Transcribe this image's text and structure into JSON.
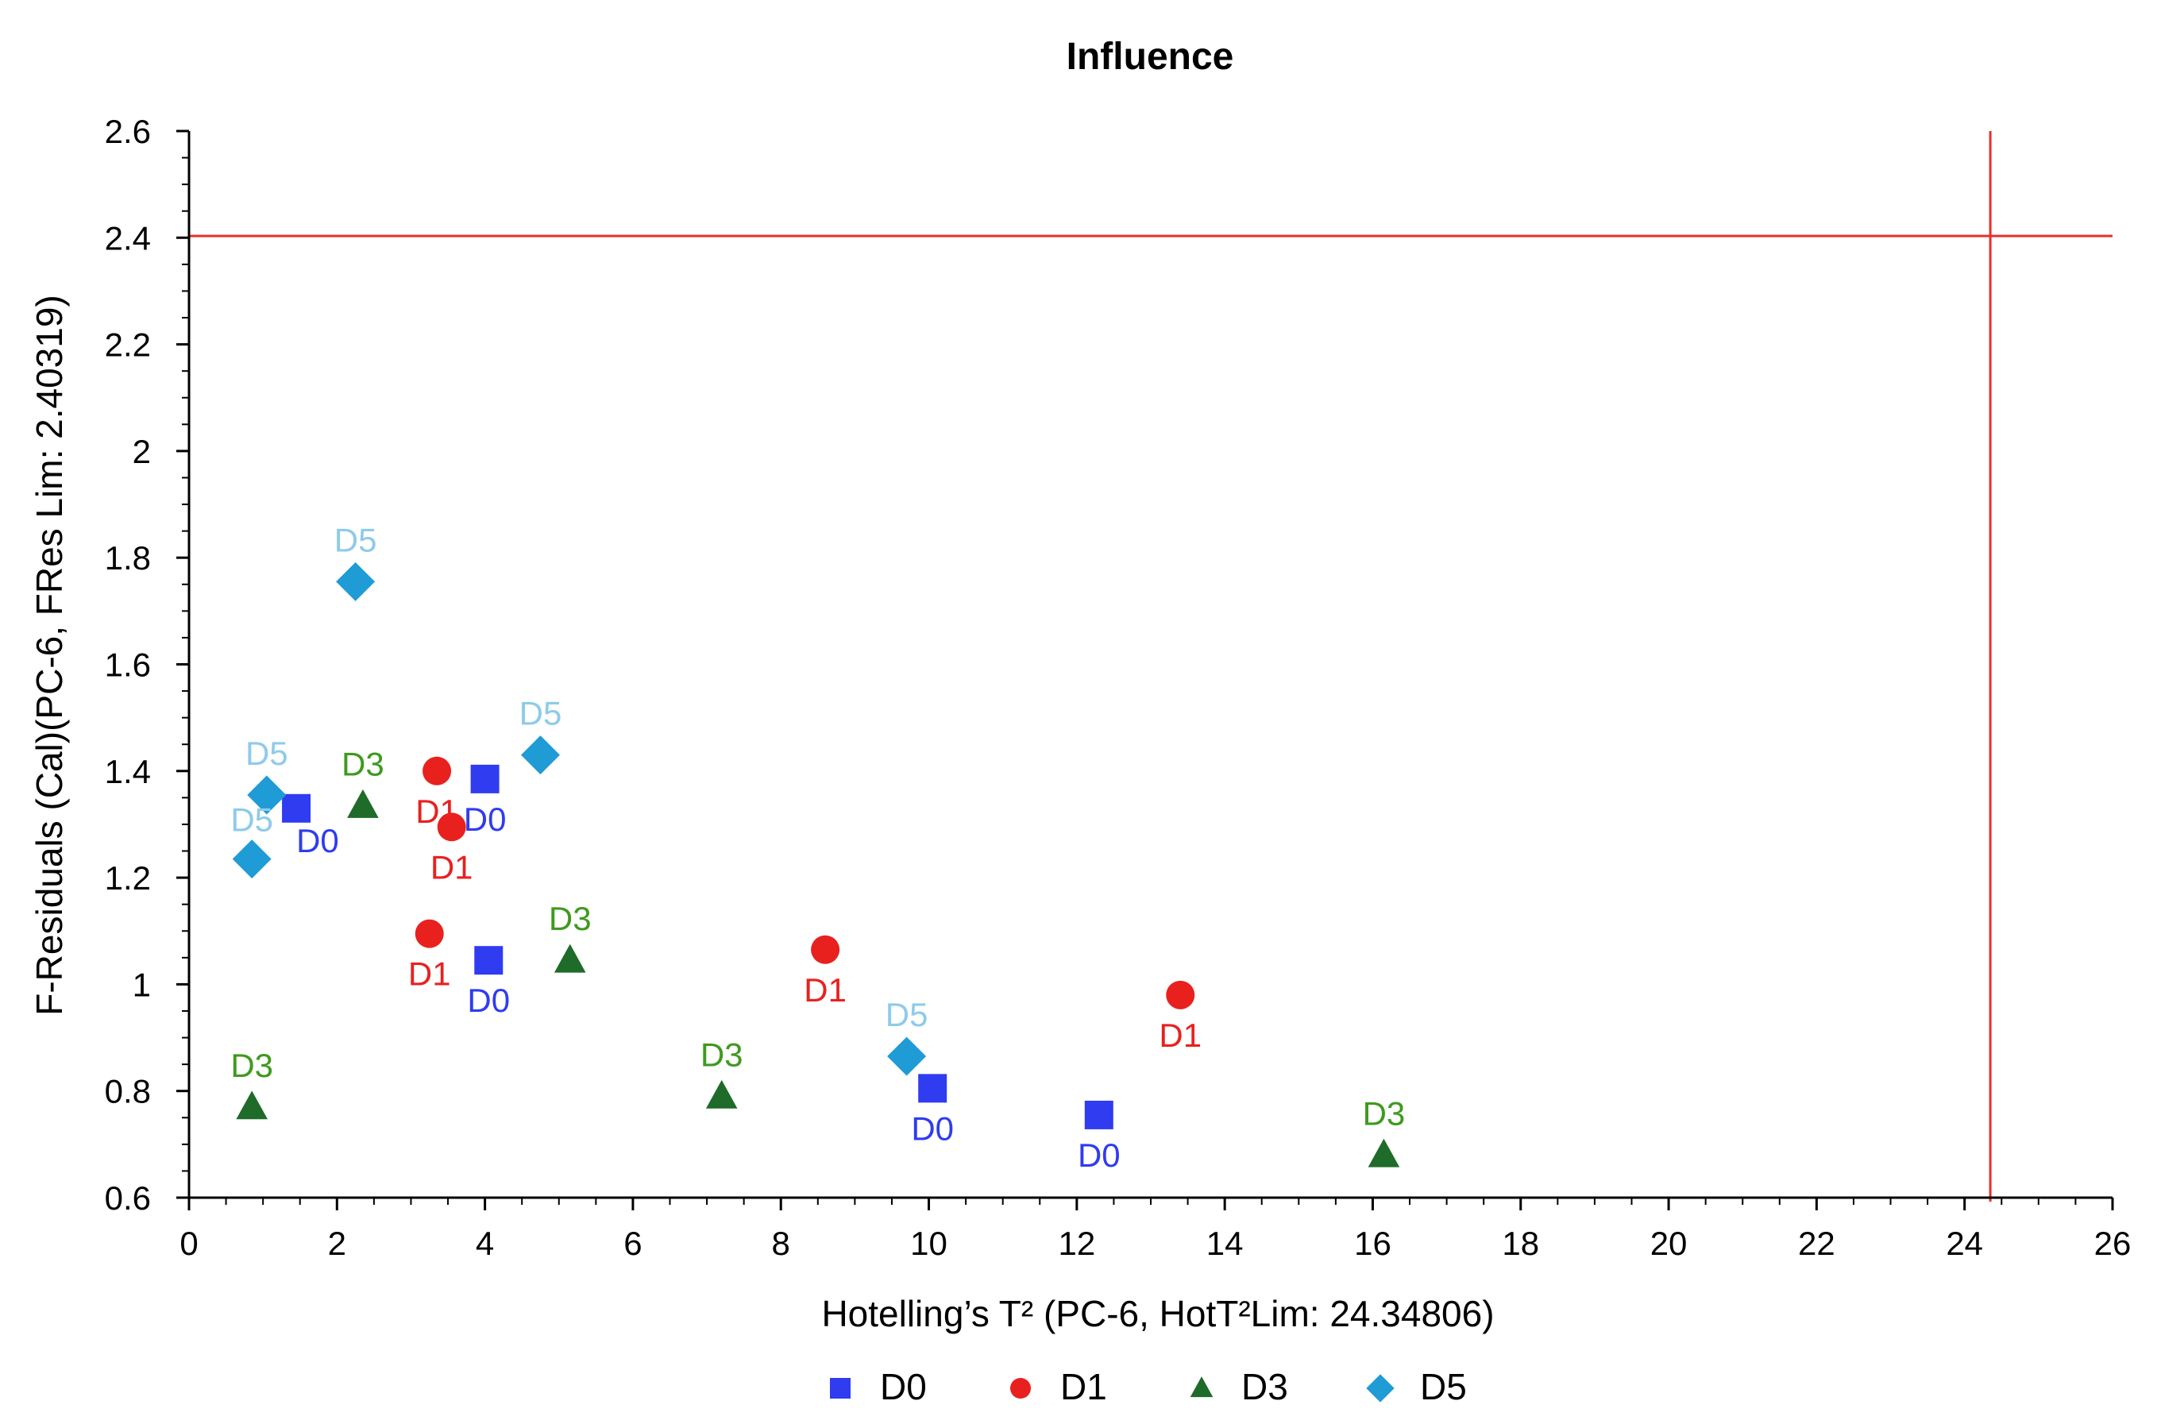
{
  "chart_data": {
    "type": "scatter",
    "title": "Influence",
    "xlabel": "Hotelling’s T² (PC-6, HotT²Lim: 24.34806)",
    "ylabel": "F-Residuals (Cal)(PC-6, FRes Lim: 2.40319)",
    "xlim": [
      0,
      26
    ],
    "ylim": [
      0.6,
      2.6
    ],
    "xticks": [
      0,
      2,
      4,
      6,
      8,
      10,
      12,
      14,
      16,
      18,
      20,
      22,
      24,
      26
    ],
    "yticks": [
      0.6,
      0.8,
      1,
      1.2,
      1.4,
      1.6,
      1.8,
      2,
      2.2,
      2.4,
      2.6
    ],
    "limits": {
      "x": 24.34806,
      "y": 2.40319,
      "color": "#e8302a"
    },
    "legend_position": "bottom",
    "series": [
      {
        "name": "D0",
        "marker": "square",
        "color": "#2f3cf0",
        "label_color": "#2f3cf0",
        "points": [
          {
            "x": 1.45,
            "y": 1.33,
            "label": "D0",
            "label_pos": "below-right"
          },
          {
            "x": 4.0,
            "y": 1.385,
            "label": "D0",
            "label_pos": "below"
          },
          {
            "x": 4.05,
            "y": 1.045,
            "label": "D0",
            "label_pos": "below"
          },
          {
            "x": 10.05,
            "y": 0.805,
            "label": "D0",
            "label_pos": "below"
          },
          {
            "x": 12.3,
            "y": 0.755,
            "label": "D0",
            "label_pos": "below"
          }
        ]
      },
      {
        "name": "D1",
        "marker": "circle",
        "color": "#e8211f",
        "label_color": "#e8211f",
        "points": [
          {
            "x": 3.35,
            "y": 1.4,
            "label": "D1",
            "label_pos": "below"
          },
          {
            "x": 3.55,
            "y": 1.295,
            "label": "D1",
            "label_pos": "below"
          },
          {
            "x": 3.25,
            "y": 1.095,
            "label": "D1",
            "label_pos": "below"
          },
          {
            "x": 8.6,
            "y": 1.065,
            "label": "D1",
            "label_pos": "below"
          },
          {
            "x": 13.4,
            "y": 0.98,
            "label": "D1",
            "label_pos": "below"
          }
        ]
      },
      {
        "name": "D3",
        "marker": "triangle",
        "color": "#1f6b2a",
        "label_color": "#3f9a1e",
        "points": [
          {
            "x": 2.35,
            "y": 1.335,
            "label": "D3",
            "label_pos": "above"
          },
          {
            "x": 5.15,
            "y": 1.045,
            "label": "D3",
            "label_pos": "above"
          },
          {
            "x": 0.85,
            "y": 0.77,
            "label": "D3",
            "label_pos": "above"
          },
          {
            "x": 7.2,
            "y": 0.79,
            "label": "D3",
            "label_pos": "above"
          },
          {
            "x": 16.15,
            "y": 0.68,
            "label": "D3",
            "label_pos": "above"
          }
        ]
      },
      {
        "name": "D5",
        "marker": "diamond",
        "color": "#1f9bd6",
        "label_color": "#8ecbea",
        "points": [
          {
            "x": 2.25,
            "y": 1.755,
            "label": "D5",
            "label_pos": "above"
          },
          {
            "x": 4.75,
            "y": 1.43,
            "label": "D5",
            "label_pos": "above"
          },
          {
            "x": 1.05,
            "y": 1.355,
            "label": "D5",
            "label_pos": "above"
          },
          {
            "x": 0.85,
            "y": 1.235,
            "label": "D5",
            "label_pos": "above-tight"
          },
          {
            "x": 9.7,
            "y": 0.865,
            "label": "D5",
            "label_pos": "above"
          }
        ]
      }
    ]
  }
}
